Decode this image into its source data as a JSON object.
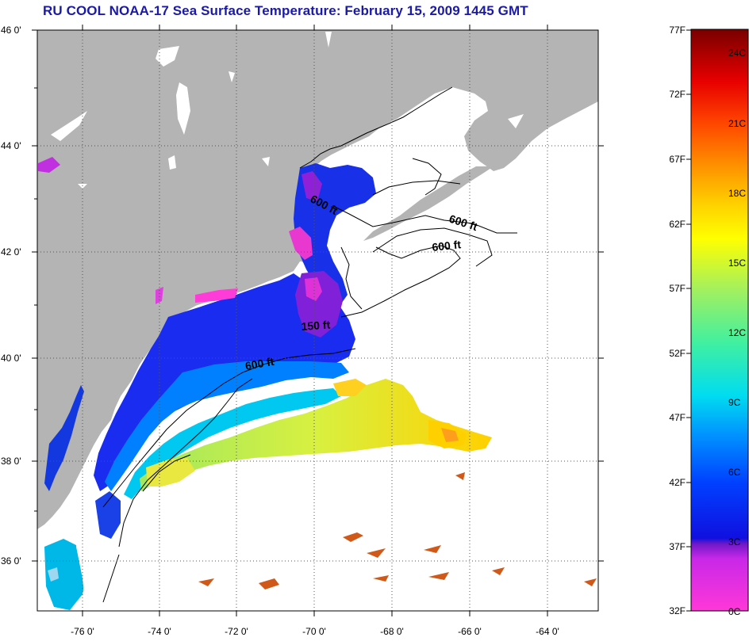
{
  "title": "RU COOL  NOAA-17  Sea Surface Temperature:  February 15, 2009 1445 GMT",
  "map": {
    "lat_ticks": [
      "46 0'",
      "44 0'",
      "42 0'",
      "40 0'",
      "38 0'",
      "36 0'"
    ],
    "lon_ticks": [
      "-76 0'",
      "-74 0'",
      "-72 0'",
      "-70 0'",
      "-68 0'",
      "-66 0'",
      "-64 0'"
    ],
    "contour_labels": [
      "600 ft",
      "600 ft",
      "600 ft",
      "150 ft",
      "600 ft"
    ],
    "land_color": "#b4b4b4"
  },
  "colorbar": {
    "f_labels": [
      "77F",
      "72F",
      "67F",
      "62F",
      "57F",
      "52F",
      "47F",
      "42F",
      "37F",
      "32F"
    ],
    "c_labels": [
      "24C",
      "21C",
      "18C",
      "15C",
      "12C",
      "9C",
      "6C",
      "3C",
      "0C"
    ]
  }
}
